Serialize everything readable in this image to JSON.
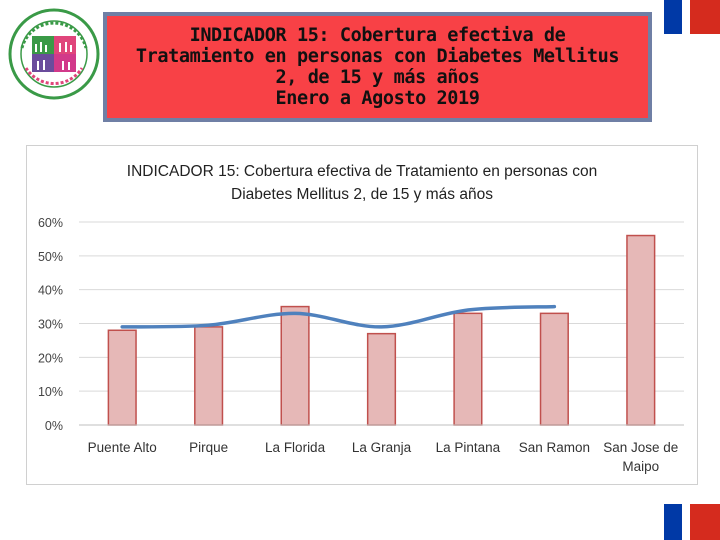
{
  "header": {
    "title_lines": [
      "INDICADOR 15: Cobertura efectiva de",
      "Tratamiento en personas con Diabetes Mellitus",
      "2, de 15 y más años",
      "Enero a Agosto 2019"
    ],
    "box_color": "#f84146",
    "border_color": "#6f7fa5"
  },
  "logo": {
    "name": "servicio-de-salud-metropolitano-sur-oriente-seal",
    "colors": [
      "#3a9a47",
      "#e0457b",
      "#6a4c9c"
    ]
  },
  "chart_data": {
    "type": "bar",
    "title_lines": [
      "INDICADOR 15: Cobertura efectiva de Tratamiento en personas con",
      "Diabetes Mellitus 2, de 15 y más años"
    ],
    "categories": [
      "Puente Alto",
      "Pirque",
      "La Florida",
      "La Granja",
      "La Pintana",
      "San Ramon",
      "San Jose de Maipo"
    ],
    "category_lines": [
      [
        "Puente Alto"
      ],
      [
        "Pirque"
      ],
      [
        "La Florida"
      ],
      [
        "La Granja"
      ],
      [
        "La Pintana"
      ],
      [
        "San Ramon"
      ],
      [
        "San Jose de",
        "Maipo"
      ]
    ],
    "values": [
      28,
      29,
      35,
      27,
      33,
      33,
      56
    ],
    "trend_line": [
      29,
      29.5,
      33,
      29,
      34,
      35
    ],
    "ylim": [
      0,
      60
    ],
    "yticks": [
      0,
      10,
      20,
      30,
      40,
      50,
      60
    ],
    "ytick_labels": [
      "0%",
      "10%",
      "20%",
      "30%",
      "40%",
      "50%",
      "60%"
    ],
    "bar_fill": "#e6b8b7",
    "bar_stroke": "#c0504d",
    "line_color": "#4f81bd",
    "grid": true,
    "xlabel": "",
    "ylabel": ""
  }
}
